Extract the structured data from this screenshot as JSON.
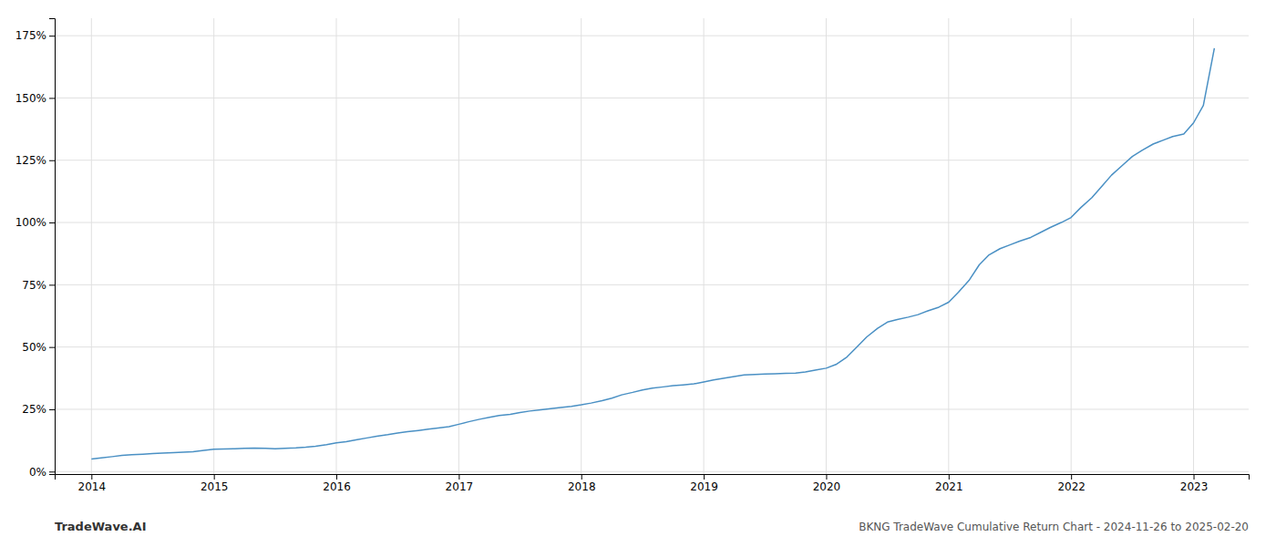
{
  "chart_data": {
    "type": "line",
    "x": [
      2014.0,
      2014.08,
      2014.17,
      2014.25,
      2014.33,
      2014.42,
      2014.5,
      2014.58,
      2014.67,
      2014.75,
      2014.83,
      2014.92,
      2015.0,
      2015.08,
      2015.17,
      2015.25,
      2015.33,
      2015.42,
      2015.5,
      2015.58,
      2015.67,
      2015.75,
      2015.83,
      2015.92,
      2016.0,
      2016.08,
      2016.17,
      2016.25,
      2016.33,
      2016.42,
      2016.5,
      2016.58,
      2016.67,
      2016.75,
      2016.83,
      2016.92,
      2017.0,
      2017.08,
      2017.17,
      2017.25,
      2017.33,
      2017.42,
      2017.5,
      2017.58,
      2017.67,
      2017.75,
      2017.83,
      2017.92,
      2018.0,
      2018.08,
      2018.17,
      2018.25,
      2018.33,
      2018.42,
      2018.5,
      2018.58,
      2018.67,
      2018.75,
      2018.83,
      2018.92,
      2019.0,
      2019.08,
      2019.17,
      2019.25,
      2019.33,
      2019.42,
      2019.5,
      2019.58,
      2019.67,
      2019.75,
      2019.83,
      2019.92,
      2020.0,
      2020.08,
      2020.17,
      2020.25,
      2020.33,
      2020.42,
      2020.5,
      2020.58,
      2020.67,
      2020.75,
      2020.83,
      2020.92,
      2021.0,
      2021.08,
      2021.17,
      2021.25,
      2021.33,
      2021.42,
      2021.5,
      2021.58,
      2021.67,
      2021.75,
      2021.83,
      2021.92,
      2022.0,
      2022.08,
      2022.17,
      2022.25,
      2022.33,
      2022.42,
      2022.5,
      2022.58,
      2022.67,
      2022.75,
      2022.83,
      2022.92,
      2023.0,
      2023.08,
      2023.17
    ],
    "values": [
      0.05,
      0.055,
      0.06,
      0.065,
      0.068,
      0.07,
      0.072,
      0.074,
      0.076,
      0.078,
      0.08,
      0.085,
      0.09,
      0.091,
      0.092,
      0.093,
      0.094,
      0.093,
      0.092,
      0.093,
      0.095,
      0.098,
      0.102,
      0.108,
      0.115,
      0.12,
      0.128,
      0.135,
      0.142,
      0.148,
      0.155,
      0.16,
      0.165,
      0.17,
      0.175,
      0.18,
      0.19,
      0.2,
      0.21,
      0.218,
      0.225,
      0.23,
      0.237,
      0.243,
      0.248,
      0.253,
      0.257,
      0.262,
      0.268,
      0.275,
      0.285,
      0.295,
      0.308,
      0.318,
      0.328,
      0.335,
      0.34,
      0.345,
      0.348,
      0.352,
      0.36,
      0.368,
      0.375,
      0.382,
      0.388,
      0.39,
      0.392,
      0.393,
      0.394,
      0.395,
      0.4,
      0.408,
      0.415,
      0.43,
      0.46,
      0.5,
      0.54,
      0.575,
      0.6,
      0.61,
      0.62,
      0.63,
      0.645,
      0.66,
      0.68,
      0.72,
      0.77,
      0.83,
      0.87,
      0.895,
      0.91,
      0.925,
      0.94,
      0.96,
      0.98,
      1.0,
      1.02,
      1.06,
      1.1,
      1.145,
      1.19,
      1.23,
      1.265,
      1.29,
      1.315,
      1.33,
      1.345,
      1.355,
      1.4,
      1.47,
      1.7
    ],
    "color": "#4a90c4",
    "xlim": [
      2013.7,
      2023.45
    ],
    "ylim": [
      -0.01,
      1.82
    ],
    "xticks": [
      2014,
      2015,
      2016,
      2017,
      2018,
      2019,
      2020,
      2021,
      2022,
      2023
    ],
    "yticks": [
      {
        "value": 0,
        "label": "0%"
      },
      {
        "value": 0.25,
        "label": "25%"
      },
      {
        "value": 0.5,
        "label": "50%"
      },
      {
        "value": 0.75,
        "label": "75%"
      },
      {
        "value": 1,
        "label": "100%"
      },
      {
        "value": 1.25,
        "label": "125%"
      },
      {
        "value": 1.5,
        "label": "150%"
      },
      {
        "value": 1.75,
        "label": "175%"
      }
    ],
    "grid": true,
    "annotations": [
      "TradeWave.AI",
      "BKNG TradeWave Cumulative Return Chart - 2024-11-26 to 2025-02-20"
    ]
  }
}
